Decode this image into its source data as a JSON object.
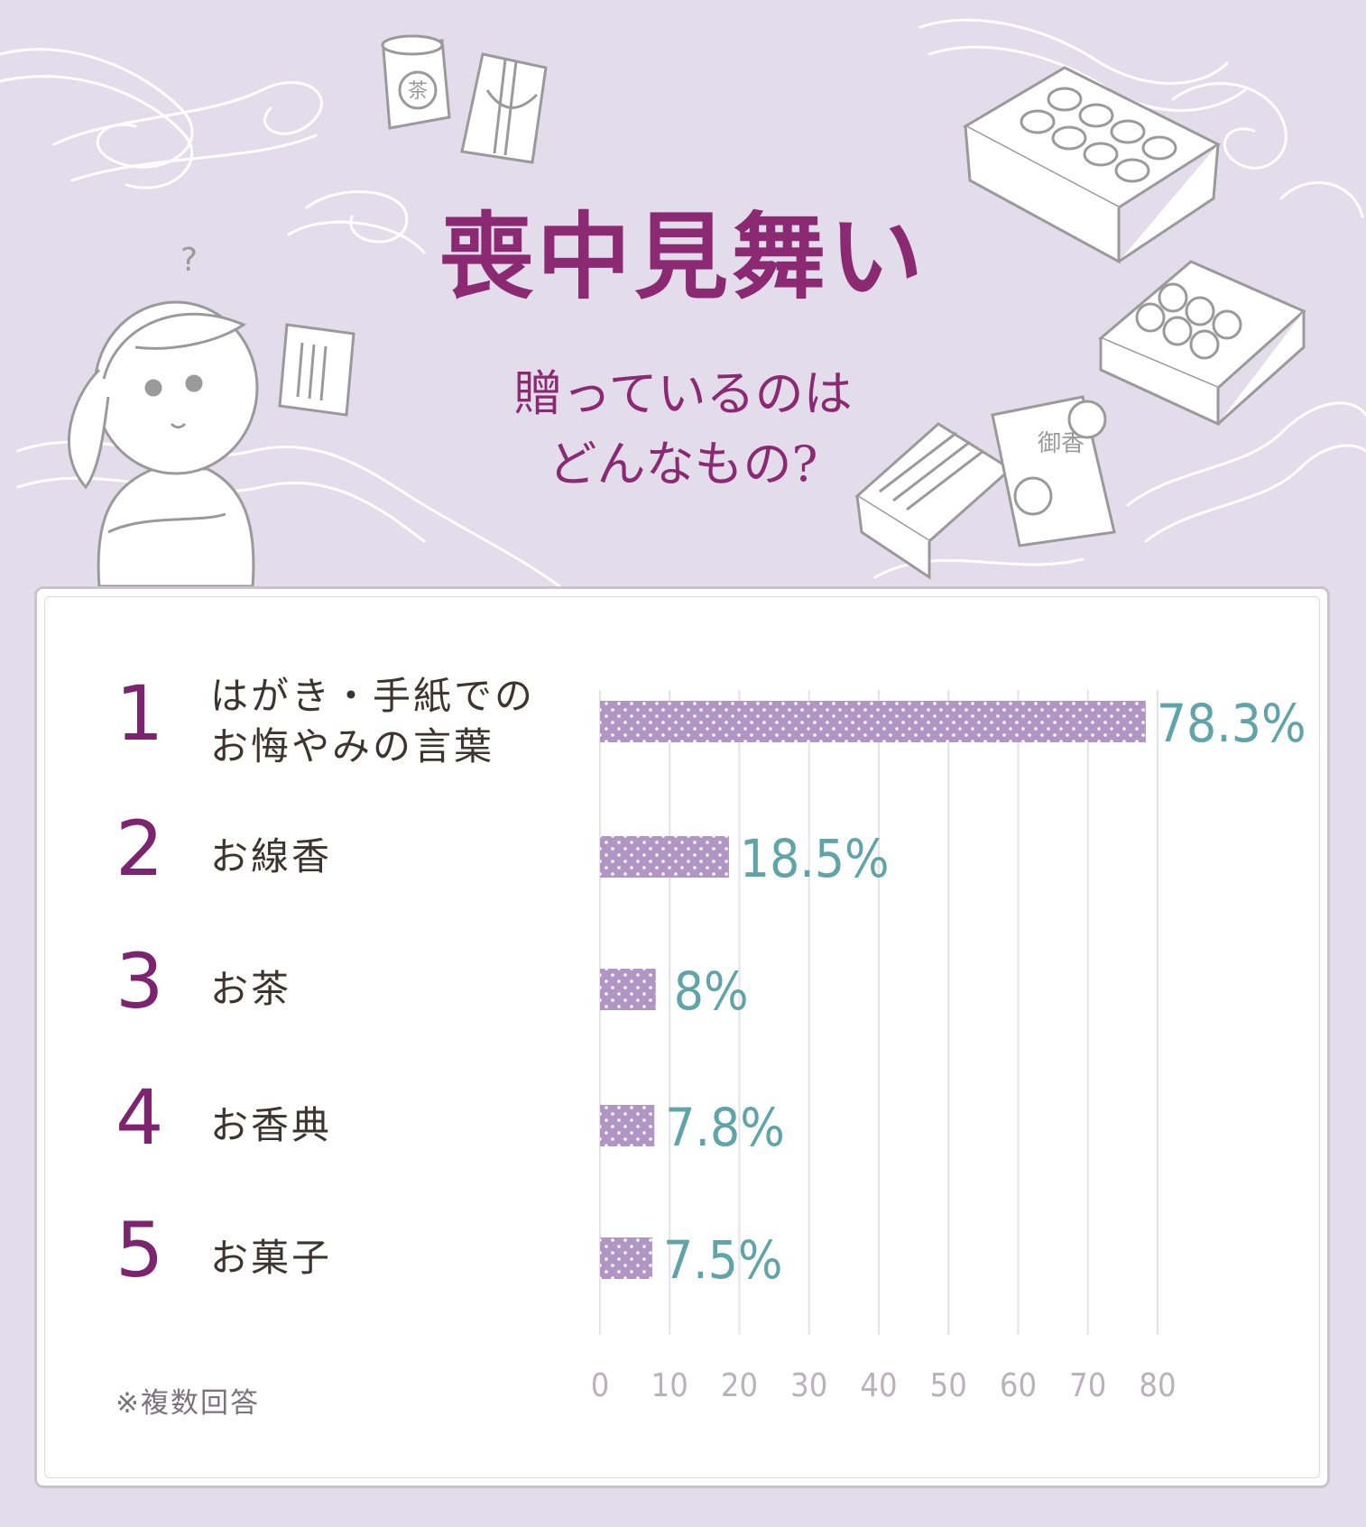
{
  "title": "喪中見舞い",
  "subtitle_line1": "贈っているのは",
  "subtitle_line2": "どんなもの?",
  "illustration": {
    "tea_can_text": "茶",
    "incense_box_text": "御香"
  },
  "colors": {
    "background": "#e3dcea",
    "title": "#8b2a73",
    "rank": "#7d2470",
    "bar": "#b195c4",
    "value_label": "#5fa4a8",
    "axis_tick": "#b9b2b8"
  },
  "chart_data": {
    "type": "bar",
    "orientation": "horizontal",
    "categories": [
      "はがき・手紙でのお悔やみの言葉",
      "お線香",
      "お茶",
      "お香典",
      "お菓子"
    ],
    "ranks": [
      "1",
      "2",
      "3",
      "4",
      "5"
    ],
    "category_lines": [
      [
        "はがき・手紙での",
        "お悔やみの言葉"
      ],
      [
        "お線香"
      ],
      [
        "お茶"
      ],
      [
        "お香典"
      ],
      [
        "お菓子"
      ]
    ],
    "values": [
      78.3,
      18.5,
      8,
      7.8,
      7.5
    ],
    "value_labels": [
      "78.3%",
      "18.5%",
      "8%",
      "7.8%",
      "7.5%"
    ],
    "xticks": [
      "0",
      "10",
      "20",
      "30",
      "40",
      "50",
      "60",
      "70",
      "80"
    ],
    "xlim": [
      0,
      80
    ],
    "grid": true
  },
  "note": "※複数回答"
}
